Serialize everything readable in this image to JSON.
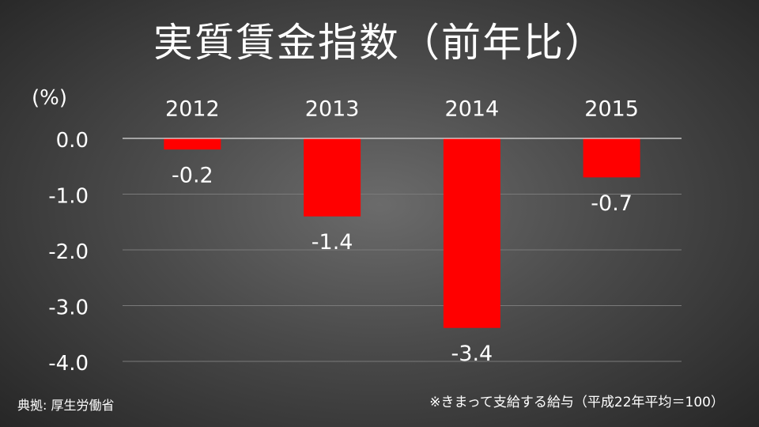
{
  "slide": {
    "title": "実質賃金指数（前年比）",
    "unit_label": "(%)",
    "source": "典拠: 厚生労働省",
    "footnote": "※きまって支給する給与（平成22年平均＝100）"
  },
  "colors": {
    "bar": "#ff0000",
    "text": "#ffffff",
    "grid": "#7a7a7a",
    "zero_line": "#dddddd"
  },
  "chart_data": {
    "type": "bar",
    "title": "実質賃金指数（前年比）",
    "ylabel": "(%)",
    "xlabel": "",
    "categories": [
      "2012",
      "2013",
      "2014",
      "2015"
    ],
    "values": [
      -0.2,
      -1.4,
      -3.4,
      -0.7
    ],
    "data_labels": [
      "-0.2",
      "-1.4",
      "-3.4",
      "-0.7"
    ],
    "y_ticks": [
      0,
      -1,
      -2,
      -3,
      -4
    ],
    "y_tick_labels": [
      "0.0",
      "-1.0",
      "-2.0",
      "-3.0",
      "-4.0"
    ],
    "ylim": [
      -4,
      0
    ],
    "category_axis_position": "top",
    "grid": true,
    "legend": "none"
  }
}
